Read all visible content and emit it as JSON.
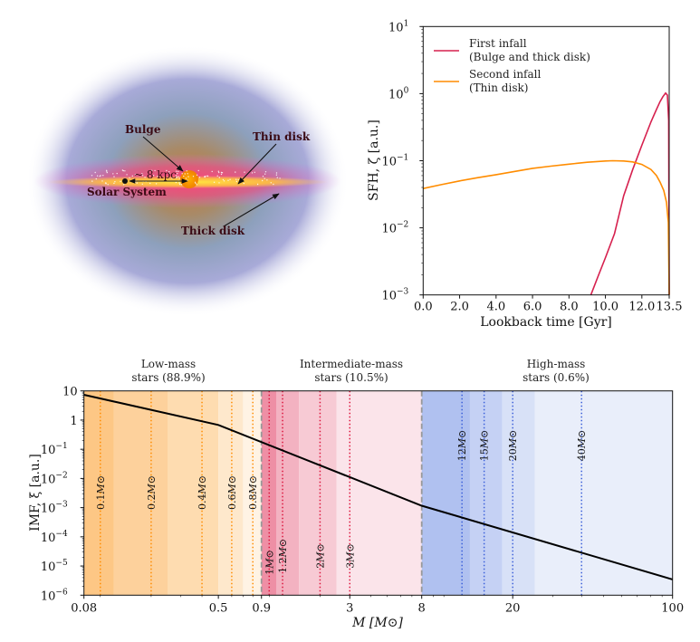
{
  "galaxy": {
    "labels": {
      "bulge": "Bulge",
      "thin_disk": "Thin disk",
      "thick_disk": "Thick disk",
      "solar_system": "Solar System",
      "distance": "~ 8 kpc"
    }
  },
  "chart_data": [
    {
      "type": "line",
      "title": "",
      "xlabel": "Lookback time [Gyr]",
      "ylabel": "SFH, ζ [a.u.]",
      "xlim": [
        0.0,
        13.5
      ],
      "ylim": [
        0.001,
        10
      ],
      "yscale": "log",
      "x_ticks": [
        0.0,
        2.0,
        4.0,
        6.0,
        8.0,
        10.0,
        12.0,
        13.5
      ],
      "x_tick_labels": [
        "0.0",
        "2.0",
        "4.0",
        "6.0",
        "8.0",
        "10.0",
        "12.0",
        "13.5"
      ],
      "y_ticks": [
        0.001,
        0.01,
        0.1,
        1,
        10
      ],
      "y_tick_labels": [
        [
          "10",
          "−3"
        ],
        [
          "10",
          "−2"
        ],
        [
          "10",
          "−1"
        ],
        [
          "10",
          "0"
        ],
        [
          "10",
          "1"
        ]
      ],
      "grid": false,
      "legend_position": "top-left",
      "series": [
        {
          "name": "First infall",
          "name_line2": "(Bulge and thick disk)",
          "color": "#d6204e",
          "x": [
            9.2,
            9.6,
            10.0,
            10.5,
            11.0,
            11.5,
            12.0,
            12.5,
            12.8,
            13.0,
            13.15,
            13.3,
            13.4,
            13.47,
            13.5
          ],
          "y": [
            0.001,
            0.0019,
            0.0036,
            0.0082,
            0.03,
            0.074,
            0.17,
            0.38,
            0.58,
            0.76,
            0.9,
            1.02,
            0.95,
            0.4,
            0.001
          ]
        },
        {
          "name": "Second infall",
          "name_line2": "(Thin disk)",
          "color": "#ff8c00",
          "x": [
            0.0,
            1.0,
            2.0,
            3.0,
            4.0,
            5.0,
            6.0,
            7.0,
            8.0,
            9.0,
            10.0,
            10.4,
            11.0,
            11.5,
            12.0,
            12.5,
            12.8,
            13.0,
            13.2,
            13.35,
            13.45,
            13.5
          ],
          "y": [
            0.0385,
            0.044,
            0.05,
            0.056,
            0.062,
            0.069,
            0.077,
            0.083,
            0.089,
            0.095,
            0.099,
            0.1,
            0.099,
            0.096,
            0.088,
            0.074,
            0.06,
            0.048,
            0.036,
            0.024,
            0.012,
            0.001
          ]
        }
      ]
    },
    {
      "type": "line",
      "title": "",
      "xlabel": "M [M⊙]",
      "ylabel": "IMF, ξ [a.u.]",
      "xlim": [
        0.08,
        100
      ],
      "ylim": [
        1e-06,
        10
      ],
      "xscale": "log (piecewise)",
      "yscale": "log",
      "x_ticks": [
        0.08,
        0.5,
        0.9,
        3,
        8,
        20,
        100
      ],
      "x_tick_labels": [
        "0.08",
        "0.5",
        "0.9",
        "3",
        "8",
        "20",
        "100"
      ],
      "y_ticks": [
        10,
        1,
        0.1,
        0.01,
        0.001,
        0.0001,
        1e-05,
        1e-06
      ],
      "y_tick_labels": [
        [
          "10",
          ""
        ],
        [
          "1",
          ""
        ],
        [
          "10",
          "−1"
        ],
        [
          "10",
          "−2"
        ],
        [
          "10",
          "−3"
        ],
        [
          "10",
          "−4"
        ],
        [
          "10",
          "−5"
        ],
        [
          "10",
          "−6"
        ]
      ],
      "grid": false,
      "imf": {
        "color": "#000000",
        "x": [
          0.08,
          0.5,
          8,
          100
        ],
        "y": [
          7.37,
          0.68,
          0.00116,
          3.47e-06
        ],
        "slopes": [
          -1.3,
          -2.3
        ]
      },
      "groups": [
        {
          "title_line1": "Low-mass",
          "title_line2": "stars (88.9%)",
          "range": [
            0.08,
            0.9
          ]
        },
        {
          "title_line1": "Intermediate-mass",
          "title_line2": "stars (10.5%)",
          "range": [
            0.9,
            8
          ]
        },
        {
          "title_line1": "High-mass",
          "title_line2": "stars (0.6%)",
          "range": [
            8,
            100
          ]
        }
      ],
      "group_boundaries": [
        0.9,
        8
      ],
      "bands": [
        {
          "from": 0.08,
          "to": 0.12,
          "color": "#fdc785"
        },
        {
          "from": 0.12,
          "to": 0.25,
          "color": "#fdd19c"
        },
        {
          "from": 0.25,
          "to": 0.5,
          "color": "#fedcb0"
        },
        {
          "from": 0.5,
          "to": 0.7,
          "color": "#fee8cc"
        },
        {
          "from": 0.7,
          "to": 0.9,
          "color": "#fff3e4"
        },
        {
          "from": 0.9,
          "to": 1.1,
          "color": "#ee8fa5"
        },
        {
          "from": 1.1,
          "to": 1.5,
          "color": "#f3b2c1"
        },
        {
          "from": 1.5,
          "to": 2.5,
          "color": "#f7cad4"
        },
        {
          "from": 2.5,
          "to": 8,
          "color": "#fbe4ea"
        },
        {
          "from": 8,
          "to": 13,
          "color": "#b0c1f0"
        },
        {
          "from": 13,
          "to": 18,
          "color": "#c5d1f4"
        },
        {
          "from": 18,
          "to": 25,
          "color": "#d8e1f7"
        },
        {
          "from": 25,
          "to": 100,
          "color": "#e9eefa"
        }
      ],
      "mass_markers": [
        {
          "mass": 0.1,
          "label": "0.1",
          "color": "#ff8c00"
        },
        {
          "mass": 0.2,
          "label": "0.2",
          "color": "#ff8c00"
        },
        {
          "mass": 0.4,
          "label": "0.4",
          "color": "#ff8c00"
        },
        {
          "mass": 0.6,
          "label": "0.6",
          "color": "#ff8c00"
        },
        {
          "mass": 0.8,
          "label": "0.8",
          "color": "#ff8c00"
        },
        {
          "mass": 1,
          "label": "1",
          "color": "#dc143c"
        },
        {
          "mass": 1.2,
          "label": "1.2",
          "color": "#dc143c"
        },
        {
          "mass": 2,
          "label": "2",
          "color": "#dc143c"
        },
        {
          "mass": 3,
          "label": "3",
          "color": "#dc143c"
        },
        {
          "mass": 12,
          "label": "12",
          "color": "#3a5fd9"
        },
        {
          "mass": 15,
          "label": "15",
          "color": "#3a5fd9"
        },
        {
          "mass": 20,
          "label": "20",
          "color": "#3a5fd9"
        },
        {
          "mass": 40,
          "label": "40",
          "color": "#3a5fd9"
        }
      ],
      "mass_unit_symbol": "M⊙"
    }
  ]
}
